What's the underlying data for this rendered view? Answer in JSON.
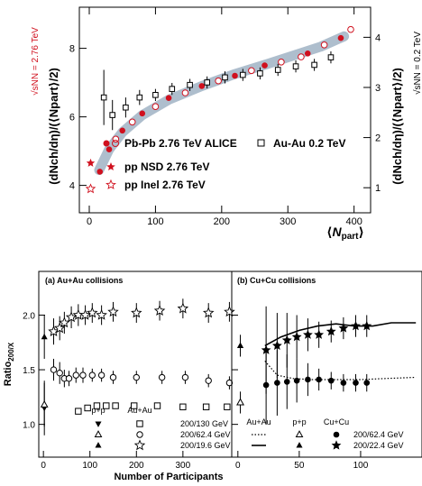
{
  "chart_data": [
    {
      "type": "scatter",
      "xlabel_prefix": "⟨",
      "xlabel_main": "N",
      "xlabel_sub": "part",
      "xlabel_suffix": "⟩",
      "ylabel_left": "(dNch/dη)/(⟨Npart⟩/2)",
      "ylabel_right": "(dNch/dη)/(⟨Npart⟩/2)",
      "sqrt_left": "√sNN = 2.76 TeV",
      "sqrt_right": "√sNN = 0.2 TeV",
      "xlim": [
        -15,
        425
      ],
      "ylim_left": [
        3.2,
        9.2
      ],
      "ylim_right": [
        0.5,
        4.6
      ],
      "xticks": [
        0,
        100,
        200,
        300,
        400
      ],
      "yticks_left": [
        4,
        6,
        8
      ],
      "yticks_right": [
        1,
        2,
        3,
        4
      ],
      "legend": [
        {
          "marker": "pair",
          "label": "Pb-Pb 2.76 TeV ALICE"
        },
        {
          "marker": "open-square",
          "label": "Au-Au  0.2 TeV"
        },
        {
          "marker": "filled-star",
          "label": "pp NSD 2.76 TeV"
        },
        {
          "marker": "open-star",
          "label": "pp Inel 2.76 TeV"
        }
      ],
      "band": {
        "x": [
          15,
          30,
          50,
          80,
          120,
          170,
          220,
          270,
          310,
          350,
          385
        ],
        "y": [
          4.45,
          5.05,
          5.55,
          6.05,
          6.5,
          6.9,
          7.25,
          7.55,
          7.8,
          8.05,
          8.35
        ]
      },
      "series": [
        {
          "marker": "filled-circle",
          "x": [
            16,
            30,
            50,
            80,
            120,
            170,
            220,
            265,
            330,
            380
          ],
          "y": [
            4.4,
            5.05,
            5.6,
            6.1,
            6.55,
            6.9,
            7.2,
            7.5,
            7.85,
            8.3
          ]
        },
        {
          "marker": "open-circle",
          "x": [
            40,
            65,
            100,
            145,
            195,
            245,
            290,
            320,
            355,
            395
          ],
          "y": [
            5.35,
            5.85,
            6.3,
            6.7,
            7.05,
            7.35,
            7.6,
            7.75,
            8.1,
            8.55
          ]
        },
        {
          "marker": "open-square",
          "axis": "right",
          "x": [
            22,
            35,
            55,
            76,
            100,
            125,
            152,
            178,
            205,
            232,
            258,
            285,
            312,
            340,
            365
          ],
          "y": [
            2.8,
            2.45,
            2.6,
            2.8,
            2.85,
            2.97,
            3.05,
            3.1,
            3.2,
            3.25,
            3.28,
            3.35,
            3.42,
            3.45,
            3.6
          ],
          "yerr": [
            0.55,
            0.3,
            0.2,
            0.15,
            0.12,
            0.12,
            0.12,
            0.12,
            0.12,
            0.12,
            0.12,
            0.12,
            0.12,
            0.12,
            0.12
          ]
        },
        {
          "marker": "filled-star",
          "x": [
            2
          ],
          "y": [
            4.65
          ]
        },
        {
          "marker": "open-star",
          "x": [
            2
          ],
          "y": [
            3.9
          ]
        }
      ]
    },
    {
      "type": "scatter",
      "title": "(a) Au+Au collisions",
      "xlim": [
        -10,
        405
      ],
      "ylim": [
        0.7,
        2.4
      ],
      "xticks": [
        0,
        100,
        200,
        300
      ],
      "yticks": [
        1.0,
        1.5,
        2.0
      ],
      "legend_headers": [
        "p+p",
        "Au+Au"
      ],
      "legend_rows": [
        "200/130 GeV",
        "200/62.4 GeV",
        "200/19.6 GeV"
      ],
      "series": [
        {
          "marker": "filled-triangle-down",
          "x": [
            2
          ],
          "y": [
            1.15
          ],
          "yerr": [
            0.25
          ]
        },
        {
          "marker": "open-triangle",
          "x": [
            2
          ],
          "y": [
            1.18
          ],
          "yerr": [
            0.2
          ]
        },
        {
          "marker": "filled-triangle",
          "x": [
            2
          ],
          "y": [
            1.8
          ],
          "yerr": [
            0.2
          ]
        },
        {
          "marker": "open-square",
          "x": [
            75,
            95,
            115,
            135,
            155,
            195,
            245,
            300,
            350,
            395
          ],
          "y": [
            1.12,
            1.15,
            1.17,
            1.17,
            1.17,
            1.17,
            1.17,
            1.16,
            1.16,
            1.16
          ]
        },
        {
          "marker": "open-circle",
          "x": [
            22,
            35,
            45,
            55,
            70,
            85,
            105,
            125,
            150,
            200,
            255,
            305,
            355,
            400
          ],
          "y": [
            1.5,
            1.47,
            1.42,
            1.42,
            1.45,
            1.45,
            1.45,
            1.45,
            1.43,
            1.43,
            1.43,
            1.43,
            1.4,
            1.38
          ],
          "yerr": [
            0.1,
            0.1,
            0.08,
            0.07,
            0.07,
            0.07,
            0.06,
            0.06,
            0.06,
            0.06,
            0.06,
            0.06,
            0.06,
            0.06
          ]
        },
        {
          "marker": "open-star",
          "x": [
            22,
            35,
            45,
            60,
            75,
            90,
            105,
            125,
            150,
            200,
            250,
            300,
            355,
            400
          ],
          "y": [
            1.85,
            1.88,
            1.93,
            1.98,
            2.0,
            2.0,
            2.02,
            2.0,
            2.03,
            2.02,
            2.04,
            2.06,
            2.02,
            2.03
          ],
          "yerr": [
            0.12,
            0.11,
            0.1,
            0.1,
            0.1,
            0.09,
            0.09,
            0.09,
            0.09,
            0.09,
            0.09,
            0.09,
            0.09,
            0.09
          ]
        }
      ]
    },
    {
      "type": "scatter",
      "title": "(b) Cu+Cu collisions",
      "xlim": [
        -5,
        150
      ],
      "ylim": [
        0.7,
        2.4
      ],
      "xticks": [
        0,
        50,
        100
      ],
      "legend_headers": [
        "Au+Au",
        "p+p",
        "Cu+Cu"
      ],
      "legend_rows": [
        "200/62.4 GeV",
        "200/22.4 GeV"
      ],
      "curves": [
        {
          "style": "dotted",
          "x": [
            22,
            32,
            45,
            60,
            80,
            100,
            120,
            145
          ],
          "y": [
            1.58,
            1.45,
            1.42,
            1.41,
            1.41,
            1.41,
            1.42,
            1.43
          ]
        },
        {
          "style": "solid",
          "x": [
            22,
            35,
            50,
            65,
            80,
            95,
            110,
            125,
            145
          ],
          "y": [
            1.72,
            1.8,
            1.86,
            1.9,
            1.92,
            1.9,
            1.9,
            1.93,
            1.93
          ]
        }
      ],
      "series": [
        {
          "marker": "open-triangle",
          "x": [
            2
          ],
          "y": [
            1.2
          ],
          "yerr": [
            0.1
          ]
        },
        {
          "marker": "filled-triangle",
          "x": [
            2
          ],
          "y": [
            1.72
          ],
          "yerr": [
            0.1
          ]
        },
        {
          "marker": "filled-circle",
          "x": [
            23,
            32,
            40,
            48,
            57,
            66,
            76,
            86,
            96,
            105
          ],
          "y": [
            1.36,
            1.38,
            1.39,
            1.4,
            1.41,
            1.41,
            1.4,
            1.38,
            1.38,
            1.38
          ],
          "yerr": [
            0.36,
            0.3,
            0.25,
            0.2,
            0.15,
            0.1,
            0.08,
            0.08,
            0.08,
            0.08
          ]
        },
        {
          "marker": "filled-star",
          "x": [
            23,
            32,
            40,
            48,
            57,
            66,
            76,
            86,
            96,
            105
          ],
          "y": [
            1.68,
            1.72,
            1.77,
            1.8,
            1.82,
            1.82,
            1.85,
            1.88,
            1.9,
            1.9
          ],
          "yerr": [
            0.4,
            0.3,
            0.25,
            0.2,
            0.15,
            0.12,
            0.1,
            0.1,
            0.1,
            0.1
          ]
        }
      ]
    }
  ],
  "shared": {
    "ylabel": "Ratio",
    "ylabel_sub": "200/X",
    "xlabel": "Number of Participants"
  }
}
